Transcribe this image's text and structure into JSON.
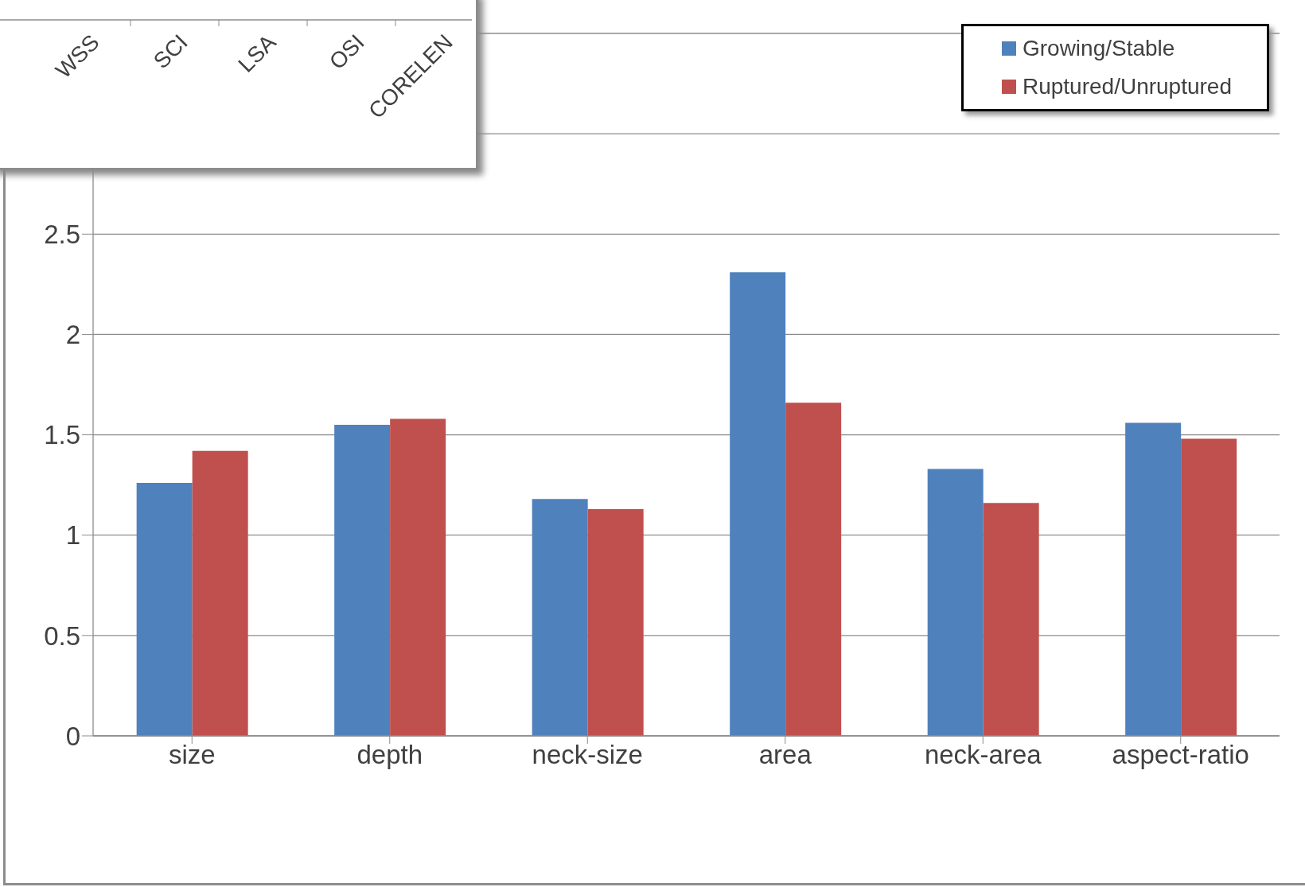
{
  "chart_data": [
    {
      "type": "bar",
      "categories": [
        "size",
        "depth",
        "neck-size",
        "area",
        "neck-area",
        "aspect-ratio"
      ],
      "series": [
        {
          "name": "Growing/Stable",
          "color": "#4f81bd",
          "values": [
            1.26,
            1.55,
            1.18,
            2.31,
            1.33,
            1.56
          ]
        },
        {
          "name": "Ruptured/Unruptured",
          "color": "#c0504d",
          "values": [
            1.42,
            1.58,
            1.13,
            1.66,
            1.16,
            1.48
          ]
        }
      ],
      "ylim": [
        0,
        3.5
      ],
      "yticks": [
        0,
        0.5,
        1,
        1.5,
        2,
        2.5,
        {
          "value": 3,
          "label": null
        },
        {
          "value": 3.5,
          "label": null
        }
      ],
      "grid": "y",
      "legend": "top right"
    },
    {
      "type": "other",
      "categories": [
        "WSS",
        "SCI",
        "LSA",
        "OSI",
        "CORELEN"
      ]
    }
  ]
}
